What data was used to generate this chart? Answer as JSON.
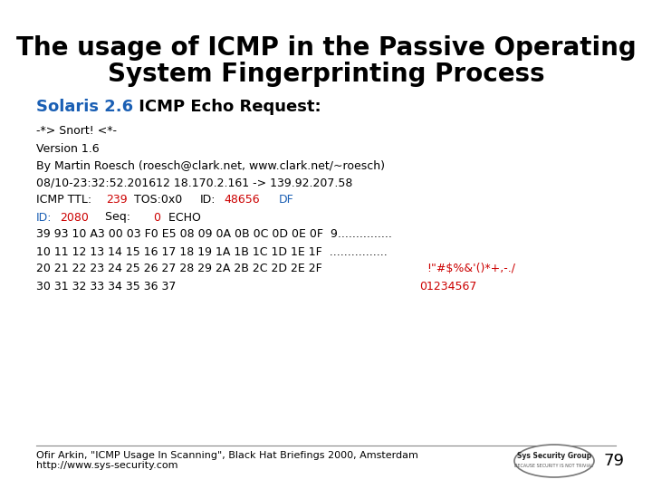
{
  "title_line1": "The usage of ICMP in the Passive Operating",
  "title_line2": "System Fingerprinting Process",
  "subtitle_blue": "Solaris 2.6",
  "subtitle_rest": " ICMP Echo Request:",
  "bg_color": "#ffffff",
  "title_color": "#000000",
  "blue_color": "#1a5fb4",
  "red_color": "#cc0000",
  "mono_color": "#000000",
  "code_lines": [
    [
      {
        "t": "-*> Snort! <*-",
        "c": "black"
      }
    ],
    [
      {
        "t": "Version 1.6",
        "c": "black"
      }
    ],
    [
      {
        "t": "By Martin Roesch (roesch@clark.net, www.clark.net/~roesch)",
        "c": "black"
      }
    ],
    [
      {
        "t": "08/10-23:32:52.201612 18.170.2.161 -> 139.92.207.58",
        "c": "black"
      }
    ],
    [
      {
        "t": "ICMP TTL:",
        "c": "black"
      },
      {
        "t": "239",
        "c": "#cc0000"
      },
      {
        "t": " TOS:0x0 ",
        "c": "black"
      },
      {
        "t": "ID:",
        "c": "black"
      },
      {
        "t": "48656",
        "c": "#cc0000"
      },
      {
        "t": "  ",
        "c": "black"
      },
      {
        "t": "DF",
        "c": "#1a5fb4"
      }
    ],
    [
      {
        "t": "ID:",
        "c": "#1a5fb4"
      },
      {
        "t": "2080",
        "c": "#cc0000"
      },
      {
        "t": "    Seq:",
        "c": "black"
      },
      {
        "t": "0",
        "c": "#cc0000"
      },
      {
        "t": "  ECHO",
        "c": "black"
      }
    ],
    [
      {
        "t": "39 93 10 A3 00 03 F0 E5 08 09 0A 0B 0C 0D 0E 0F  9...............",
        "c": "black"
      }
    ],
    [
      {
        "t": "10 11 12 13 14 15 16 17 18 19 1A 1B 1C 1D 1E 1F  ................",
        "c": "black"
      }
    ],
    [
      {
        "t": "20 21 22 23 24 25 26 27 28 29 2A 2B 2C 2D 2E 2F   ",
        "c": "black"
      },
      {
        "t": "!\"#$%&'()*+,-./",
        "c": "#cc0000"
      }
    ],
    [
      {
        "t": "30 31 32 33 34 35 36 37                          ",
        "c": "black"
      },
      {
        "t": "01234567",
        "c": "#cc0000"
      }
    ]
  ],
  "footer_left1": "Ofir Arkin, \"ICMP Usage In Scanning\", Black Hat Briefings 2000, Amsterdam",
  "footer_left2": "http://www.sys-security.com",
  "footer_page": "79",
  "footer_color": "#000000",
  "title_fontsize": 20,
  "subtitle_fontsize": 13,
  "code_fontsize": 9,
  "footer_fontsize": 8
}
